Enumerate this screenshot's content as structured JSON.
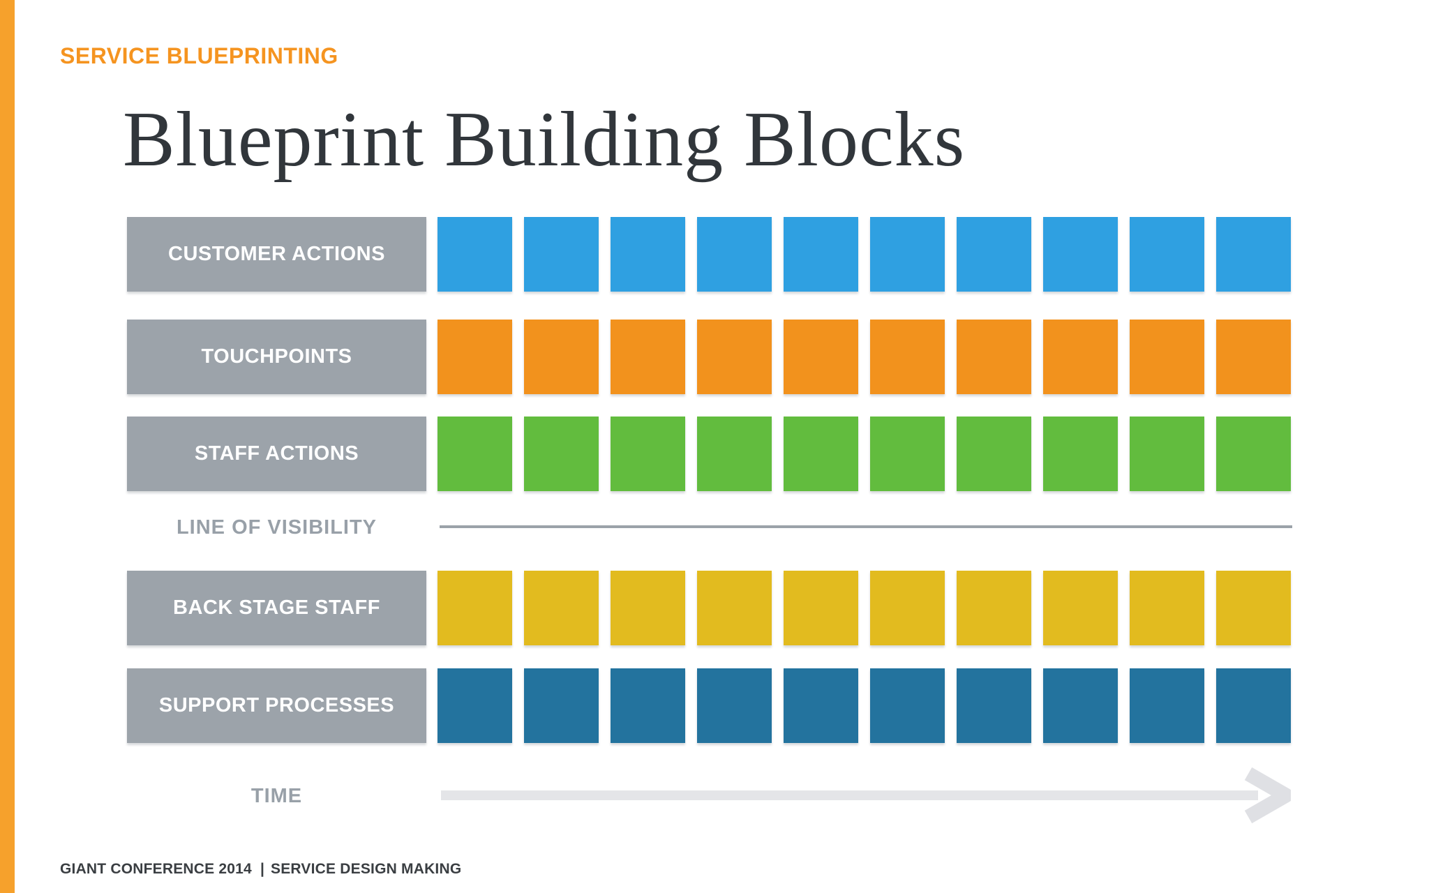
{
  "header": {
    "kicker": "SERVICE BLUEPRINTING",
    "title": "Blueprint Building Blocks"
  },
  "diagram": {
    "rows": [
      {
        "type": "blocks",
        "label": "CUSTOMER ACTIONS",
        "color": "#2FA0E1",
        "count": 10
      },
      {
        "type": "blocks",
        "label": "TOUCHPOINTS",
        "color": "#F2921D",
        "count": 10
      },
      {
        "type": "blocks",
        "label": "STAFF ACTIONS",
        "color": "#62BC3E",
        "count": 10
      },
      {
        "type": "line",
        "label": "LINE OF VISIBILITY"
      },
      {
        "type": "blocks",
        "label": "BACK STAGE STAFF",
        "color": "#E2BB1F",
        "count": 10
      },
      {
        "type": "blocks",
        "label": "SUPPORT PROCESSES",
        "color": "#23739E",
        "count": 10
      },
      {
        "type": "arrow",
        "label": "TIME"
      }
    ],
    "icons": {
      "time_arrow": "arrow-right-icon"
    }
  },
  "footer": {
    "left": "GIANT CONFERENCE 2014",
    "separator": "|",
    "right": "SERVICE DESIGN MAKING"
  },
  "colors": {
    "background": "#FFFFFF",
    "accent_bar": "#F6A12C",
    "kicker": "#F59420",
    "title": "#31363B",
    "label_bg": "#9CA3AA",
    "label_text": "#FFFFFF",
    "muted_label": "#98A0A8",
    "visibility_line": "#9BA2A9",
    "arrow": "#E4E5E8",
    "arrow_head": "#DFE0E4",
    "footer_text": "#3A3E42"
  }
}
